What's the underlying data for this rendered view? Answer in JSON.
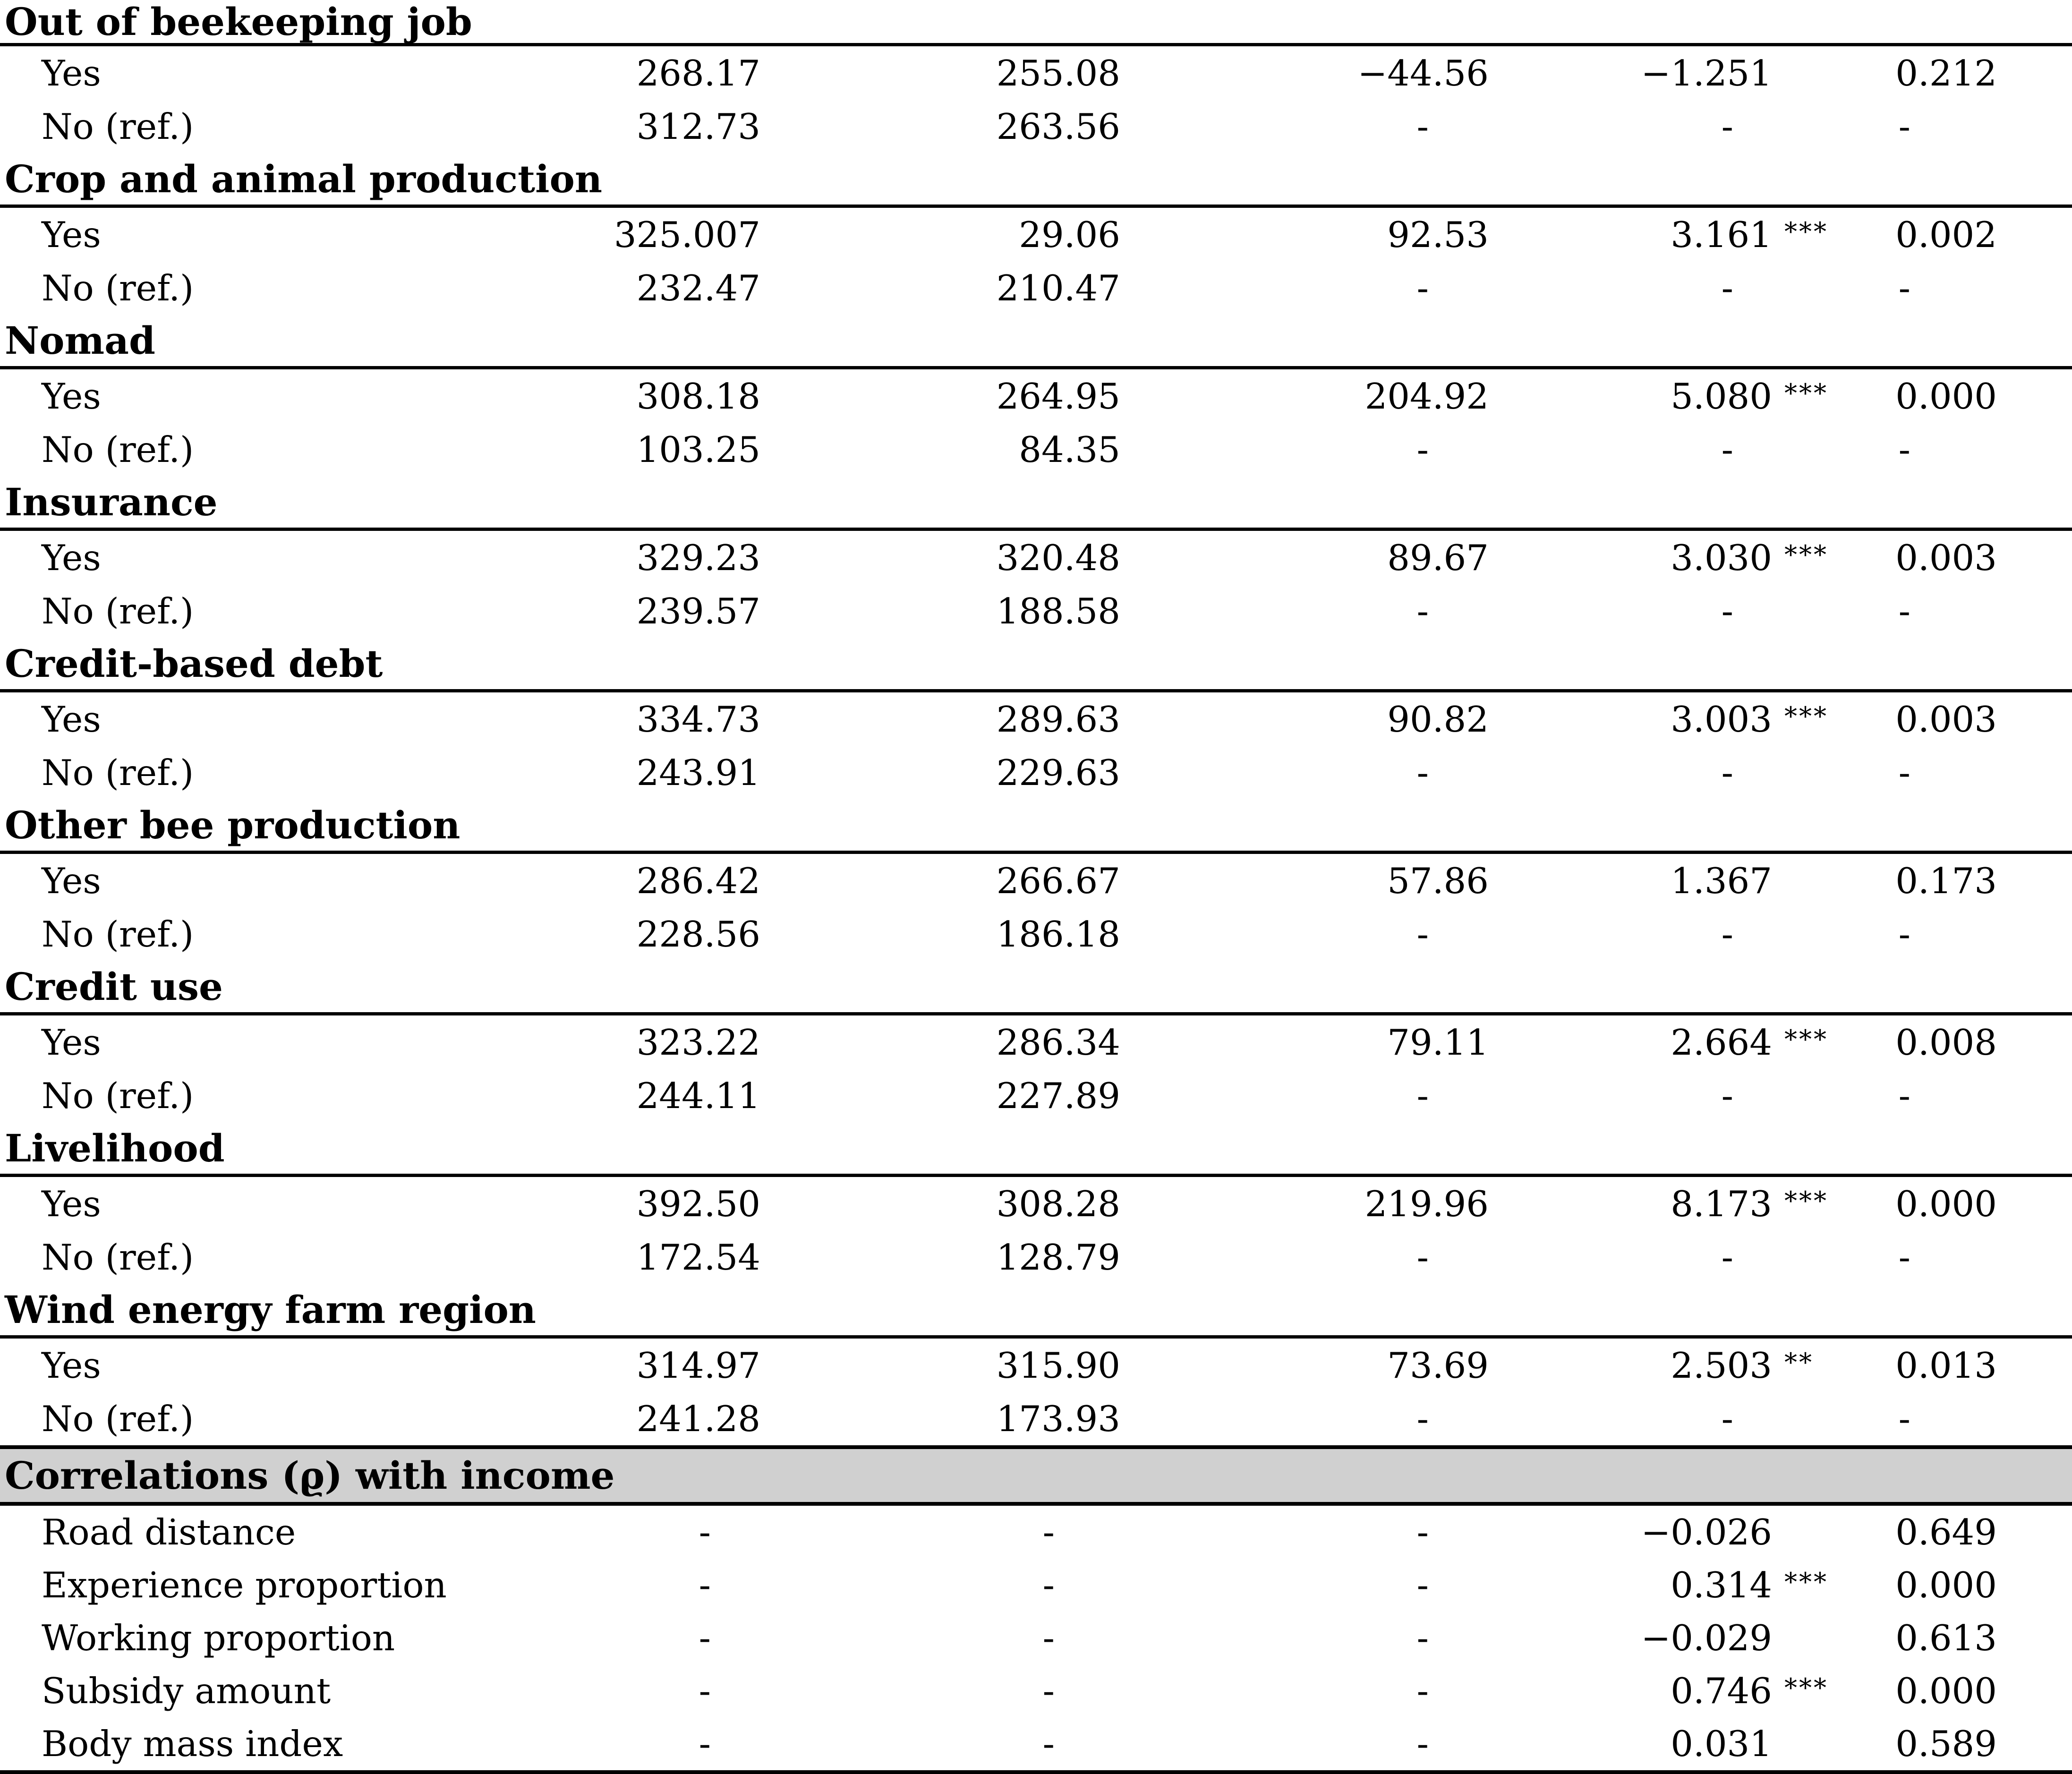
{
  "colors": {
    "band_bg": "#d0d0d0",
    "rule": "#000000",
    "text": "#000000"
  },
  "table": {
    "sections": [
      {
        "header": "Out of beekeeping job",
        "rows": [
          {
            "label": "Yes",
            "c1": "268.17",
            "c2": "255.08",
            "c3": "−44.56",
            "c4": "−1.251",
            "c4s": "",
            "c5": "0.212"
          },
          {
            "label": "No (ref.)",
            "c1": "312.73",
            "c2": "263.56",
            "c3": "-",
            "c4": "-",
            "c4s": "",
            "c5": "-"
          }
        ]
      },
      {
        "header": "Crop and animal production",
        "rows": [
          {
            "label": "Yes",
            "c1": "325.007",
            "c2": "29.06",
            "c3": "92.53",
            "c4": "3.161",
            "c4s": "***",
            "c5": "0.002"
          },
          {
            "label": "No (ref.)",
            "c1": "232.47",
            "c2": "210.47",
            "c3": "-",
            "c4": "-",
            "c4s": "",
            "c5": "-"
          }
        ]
      },
      {
        "header": "Nomad",
        "rows": [
          {
            "label": "Yes",
            "c1": "308.18",
            "c2": "264.95",
            "c3": "204.92",
            "c4": "5.080",
            "c4s": "***",
            "c5": "0.000"
          },
          {
            "label": "No (ref.)",
            "c1": "103.25",
            "c2": "84.35",
            "c3": "-",
            "c4": "-",
            "c4s": "",
            "c5": "-"
          }
        ]
      },
      {
        "header": "Insurance",
        "rows": [
          {
            "label": "Yes",
            "c1": "329.23",
            "c2": "320.48",
            "c3": "89.67",
            "c4": "3.030",
            "c4s": "***",
            "c5": "0.003"
          },
          {
            "label": "No (ref.)",
            "c1": "239.57",
            "c2": "188.58",
            "c3": "-",
            "c4": "-",
            "c4s": "",
            "c5": "-"
          }
        ]
      },
      {
        "header": "Credit-based debt",
        "rows": [
          {
            "label": "Yes",
            "c1": "334.73",
            "c2": "289.63",
            "c3": "90.82",
            "c4": "3.003",
            "c4s": "***",
            "c5": "0.003"
          },
          {
            "label": "No (ref.)",
            "c1": "243.91",
            "c2": "229.63",
            "c3": "-",
            "c4": "-",
            "c4s": "",
            "c5": "-"
          }
        ]
      },
      {
        "header": "Other bee production",
        "rows": [
          {
            "label": "Yes",
            "c1": "286.42",
            "c2": "266.67",
            "c3": "57.86",
            "c4": "1.367",
            "c4s": "",
            "c5": "0.173"
          },
          {
            "label": "No (ref.)",
            "c1": "228.56",
            "c2": "186.18",
            "c3": "-",
            "c4": "-",
            "c4s": "",
            "c5": "-"
          }
        ]
      },
      {
        "header": "Credit use",
        "rows": [
          {
            "label": "Yes",
            "c1": "323.22",
            "c2": "286.34",
            "c3": "79.11",
            "c4": "2.664",
            "c4s": "***",
            "c5": "0.008"
          },
          {
            "label": "No (ref.)",
            "c1": "244.11",
            "c2": "227.89",
            "c3": "-",
            "c4": "-",
            "c4s": "",
            "c5": "-"
          }
        ]
      },
      {
        "header": "Livelihood",
        "rows": [
          {
            "label": "Yes",
            "c1": "392.50",
            "c2": "308.28",
            "c3": "219.96",
            "c4": "8.173",
            "c4s": "***",
            "c5": "0.000"
          },
          {
            "label": "No (ref.)",
            "c1": "172.54",
            "c2": "128.79",
            "c3": "-",
            "c4": "-",
            "c4s": "",
            "c5": "-"
          }
        ]
      },
      {
        "header": "Wind energy farm region",
        "rows": [
          {
            "label": "Yes",
            "c1": "314.97",
            "c2": "315.90",
            "c3": "73.69",
            "c4": "2.503",
            "c4s": "**",
            "c5": "0.013"
          },
          {
            "label": "No (ref.)",
            "c1": "241.28",
            "c2": "173.93",
            "c3": "-",
            "c4": "-",
            "c4s": "",
            "c5": "-"
          }
        ]
      }
    ],
    "correlations": {
      "header": "Correlations (ϱ) with income",
      "rows": [
        {
          "label": "Road distance",
          "c1": "-",
          "c2": "-",
          "c3": "-",
          "c4": "−0.026",
          "c4s": "",
          "c5": "0.649"
        },
        {
          "label": "Experience proportion",
          "c1": "-",
          "c2": "-",
          "c3": "-",
          "c4": "0.314",
          "c4s": "***",
          "c5": "0.000"
        },
        {
          "label": "Working proportion",
          "c1": "-",
          "c2": "-",
          "c3": "-",
          "c4": "−0.029",
          "c4s": "",
          "c5": "0.613"
        },
        {
          "label": "Subsidy amount",
          "c1": "-",
          "c2": "-",
          "c3": "-",
          "c4": "0.746",
          "c4s": "***",
          "c5": "0.000"
        },
        {
          "label": "Body mass index",
          "c1": "-",
          "c2": "-",
          "c3": "-",
          "c4": "0.031",
          "c4s": "",
          "c5": "0.589"
        }
      ]
    }
  }
}
